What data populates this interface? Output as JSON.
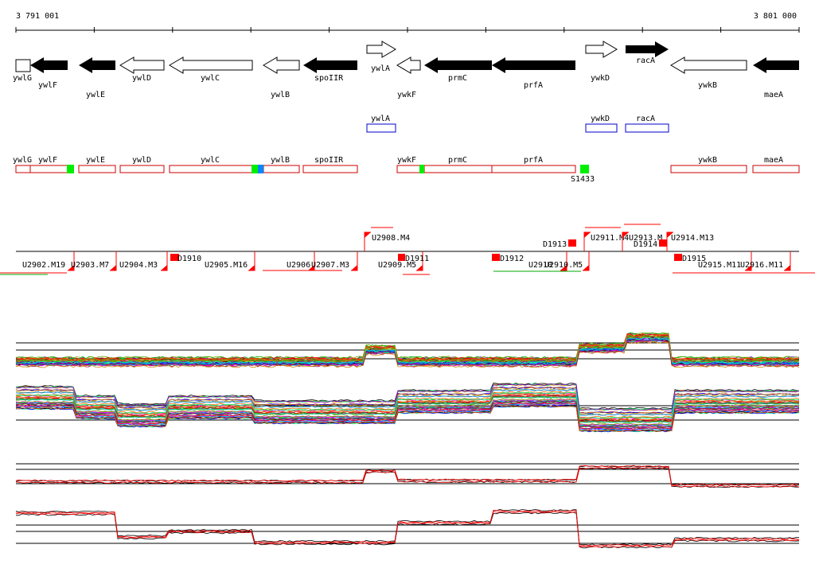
{
  "coordinates": {
    "start": "3 791 001",
    "end": "3 801 000"
  },
  "colors": {
    "gene_fill": "#000000",
    "gene_outline": "#000000",
    "region_red": "#cc0000",
    "region_blue": "#0000cc",
    "green": "#00ee00",
    "blue": "#0088ff",
    "marker_red": "#ff0000"
  },
  "genes": [
    {
      "name": "ywlG",
      "strand": "-",
      "filled": false
    },
    {
      "name": "ywlF",
      "strand": "-",
      "filled": true
    },
    {
      "name": "ywlE",
      "strand": "-",
      "filled": true
    },
    {
      "name": "ywlD",
      "strand": "-",
      "filled": false
    },
    {
      "name": "ywlC",
      "strand": "-",
      "filled": false
    },
    {
      "name": "ywlB",
      "strand": "-",
      "filled": false
    },
    {
      "name": "spoIIR",
      "strand": "-",
      "filled": true
    },
    {
      "name": "ywlA",
      "strand": "+",
      "filled": false
    },
    {
      "name": "ywkF",
      "strand": "-",
      "filled": false
    },
    {
      "name": "prmC",
      "strand": "-",
      "filled": true
    },
    {
      "name": "prfA",
      "strand": "-",
      "filled": true
    },
    {
      "name": "ywkD",
      "strand": "+",
      "filled": false
    },
    {
      "name": "racA",
      "strand": "+",
      "filled": true
    },
    {
      "name": "ywkB",
      "strand": "-",
      "filled": false
    },
    {
      "name": "maeA",
      "strand": "-",
      "filled": true
    }
  ],
  "blue_regions": [
    "ywlA",
    "ywkD",
    "racA"
  ],
  "red_regions": [
    "ywlG",
    "ywlF",
    "ywlE",
    "ywlD",
    "ywlC",
    "ywlB",
    "spoIIR",
    "ywkF",
    "prmC",
    "prfA",
    "ywkB",
    "maeA"
  ],
  "signal_label": "S1433",
  "upper_transcripts": [
    "U2908.M4",
    "U2911.M4",
    "U2913.M",
    "U2914.M13"
  ],
  "lower_transcripts": [
    "U2902.M19",
    "U2903.M7",
    "U2904.M3",
    "U2905.M16",
    "U2906",
    "U2907.M3",
    "U2909.M5",
    "U2910",
    "U2910.M5",
    "U2915.M11",
    "U2916.M11"
  ],
  "d_labels": [
    "D1910",
    "D1911",
    "D1912",
    "D1913",
    "D1914",
    "D1915"
  ]
}
